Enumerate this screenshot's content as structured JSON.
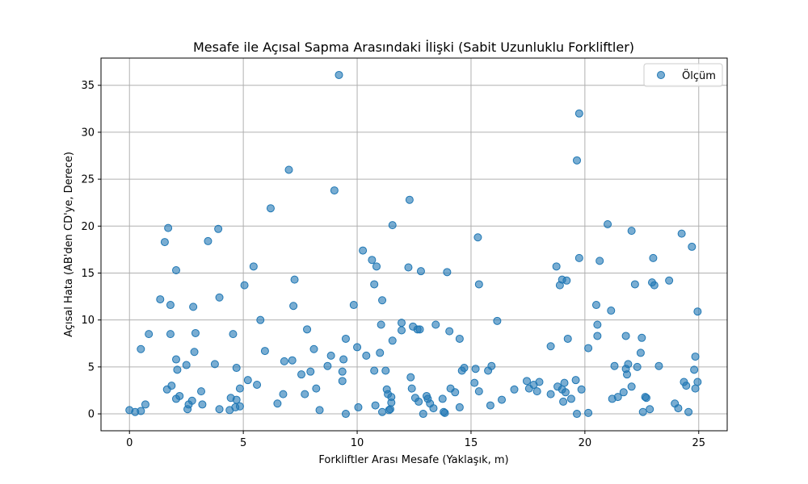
{
  "chart_data": {
    "type": "scatter",
    "title": "Mesafe ile Açısal Sapma Arasındaki İlişki (Sabit Uzunluklu Forkliftler)",
    "xlabel": "Forkliftler Arası Mesafe (Yaklaşık, m)",
    "ylabel": "Açısal Hata (AB'den CD'ye, Derece)",
    "xlim": [
      -1.25,
      26.25
    ],
    "ylim": [
      -1.8,
      37.9
    ],
    "xticks": [
      0,
      5,
      10,
      15,
      20,
      25
    ],
    "yticks": [
      0,
      5,
      10,
      15,
      20,
      25,
      30,
      35
    ],
    "grid": true,
    "legend_position": "top-right",
    "series": [
      {
        "name": "Ölçüm",
        "color": "#1f77b4",
        "points": [
          [
            0.0,
            0.4
          ],
          [
            0.25,
            0.2
          ],
          [
            0.5,
            0.3
          ],
          [
            0.5,
            6.9
          ],
          [
            0.7,
            1.0
          ],
          [
            0.85,
            8.5
          ],
          [
            1.35,
            12.2
          ],
          [
            1.55,
            18.3
          ],
          [
            1.65,
            2.6
          ],
          [
            1.7,
            19.8
          ],
          [
            1.8,
            11.6
          ],
          [
            1.8,
            8.5
          ],
          [
            1.85,
            3.0
          ],
          [
            2.05,
            15.3
          ],
          [
            2.05,
            5.8
          ],
          [
            2.05,
            1.6
          ],
          [
            2.1,
            4.7
          ],
          [
            2.2,
            1.9
          ],
          [
            2.5,
            5.2
          ],
          [
            2.55,
            0.5
          ],
          [
            2.6,
            1.0
          ],
          [
            2.75,
            1.4
          ],
          [
            2.8,
            11.4
          ],
          [
            2.85,
            6.6
          ],
          [
            2.9,
            8.6
          ],
          [
            3.15,
            2.4
          ],
          [
            3.2,
            1.0
          ],
          [
            3.45,
            18.4
          ],
          [
            3.75,
            5.3
          ],
          [
            3.9,
            19.7
          ],
          [
            3.95,
            12.4
          ],
          [
            3.95,
            0.5
          ],
          [
            4.4,
            0.4
          ],
          [
            4.45,
            1.7
          ],
          [
            4.55,
            8.5
          ],
          [
            4.65,
            0.7
          ],
          [
            4.7,
            1.5
          ],
          [
            4.7,
            4.9
          ],
          [
            4.85,
            2.7
          ],
          [
            4.85,
            0.8
          ],
          [
            5.05,
            13.7
          ],
          [
            5.2,
            3.6
          ],
          [
            5.45,
            15.7
          ],
          [
            5.6,
            3.1
          ],
          [
            5.75,
            10.0
          ],
          [
            5.95,
            6.7
          ],
          [
            6.2,
            21.9
          ],
          [
            6.5,
            1.1
          ],
          [
            6.75,
            2.1
          ],
          [
            6.8,
            5.6
          ],
          [
            7.0,
            26.0
          ],
          [
            7.15,
            5.7
          ],
          [
            7.2,
            11.5
          ],
          [
            7.25,
            14.3
          ],
          [
            7.55,
            4.2
          ],
          [
            7.7,
            2.1
          ],
          [
            7.8,
            9.0
          ],
          [
            7.95,
            4.5
          ],
          [
            8.1,
            6.9
          ],
          [
            8.2,
            2.7
          ],
          [
            8.35,
            0.4
          ],
          [
            8.7,
            5.1
          ],
          [
            8.85,
            6.2
          ],
          [
            9.0,
            23.8
          ],
          [
            9.2,
            36.1
          ],
          [
            9.35,
            4.5
          ],
          [
            9.35,
            3.5
          ],
          [
            9.4,
            5.8
          ],
          [
            9.5,
            8.0
          ],
          [
            9.5,
            0.0
          ],
          [
            9.85,
            11.6
          ],
          [
            10.0,
            7.1
          ],
          [
            10.05,
            0.7
          ],
          [
            10.25,
            17.4
          ],
          [
            10.4,
            6.2
          ],
          [
            10.65,
            16.4
          ],
          [
            10.75,
            13.8
          ],
          [
            10.75,
            4.6
          ],
          [
            10.8,
            0.9
          ],
          [
            10.85,
            15.7
          ],
          [
            11.0,
            6.5
          ],
          [
            11.05,
            9.5
          ],
          [
            11.1,
            0.2
          ],
          [
            11.1,
            12.1
          ],
          [
            11.25,
            4.6
          ],
          [
            11.3,
            2.6
          ],
          [
            11.35,
            2.1
          ],
          [
            11.4,
            0.4
          ],
          [
            11.45,
            0.5
          ],
          [
            11.5,
            1.2
          ],
          [
            11.5,
            1.8
          ],
          [
            11.55,
            7.8
          ],
          [
            11.55,
            20.1
          ],
          [
            11.95,
            9.7
          ],
          [
            11.95,
            8.9
          ],
          [
            12.25,
            15.6
          ],
          [
            12.3,
            22.8
          ],
          [
            12.35,
            3.9
          ],
          [
            12.4,
            2.7
          ],
          [
            12.45,
            9.3
          ],
          [
            12.55,
            1.7
          ],
          [
            12.65,
            9.0
          ],
          [
            12.7,
            1.3
          ],
          [
            12.75,
            9.0
          ],
          [
            12.8,
            15.2
          ],
          [
            12.9,
            0.0
          ],
          [
            13.05,
            1.9
          ],
          [
            13.1,
            1.6
          ],
          [
            13.2,
            1.1
          ],
          [
            13.35,
            0.6
          ],
          [
            13.45,
            9.5
          ],
          [
            13.75,
            1.6
          ],
          [
            13.8,
            0.2
          ],
          [
            13.85,
            0.1
          ],
          [
            13.95,
            15.1
          ],
          [
            14.05,
            8.8
          ],
          [
            14.1,
            2.7
          ],
          [
            14.3,
            2.3
          ],
          [
            14.5,
            0.7
          ],
          [
            14.5,
            8.0
          ],
          [
            14.6,
            4.6
          ],
          [
            14.7,
            4.9
          ],
          [
            15.15,
            3.3
          ],
          [
            15.2,
            4.8
          ],
          [
            15.3,
            18.8
          ],
          [
            15.35,
            2.4
          ],
          [
            15.35,
            13.8
          ],
          [
            15.75,
            4.6
          ],
          [
            15.85,
            0.9
          ],
          [
            15.9,
            5.1
          ],
          [
            16.15,
            9.9
          ],
          [
            16.35,
            1.5
          ],
          [
            16.9,
            2.6
          ],
          [
            17.45,
            3.5
          ],
          [
            17.55,
            2.7
          ],
          [
            17.75,
            3.1
          ],
          [
            17.9,
            2.4
          ],
          [
            18.0,
            3.4
          ],
          [
            18.5,
            7.2
          ],
          [
            18.5,
            2.1
          ],
          [
            18.75,
            15.7
          ],
          [
            18.8,
            2.9
          ],
          [
            18.9,
            13.7
          ],
          [
            19.0,
            14.3
          ],
          [
            19.0,
            2.6
          ],
          [
            19.05,
            1.3
          ],
          [
            19.1,
            3.3
          ],
          [
            19.15,
            2.3
          ],
          [
            19.2,
            14.2
          ],
          [
            19.25,
            8.0
          ],
          [
            19.4,
            1.6
          ],
          [
            19.6,
            3.6
          ],
          [
            19.65,
            0.0
          ],
          [
            19.65,
            27.0
          ],
          [
            19.75,
            32.0
          ],
          [
            19.75,
            16.6
          ],
          [
            19.85,
            2.6
          ],
          [
            20.15,
            0.1
          ],
          [
            20.15,
            7.0
          ],
          [
            20.5,
            11.6
          ],
          [
            20.55,
            9.5
          ],
          [
            20.55,
            8.3
          ],
          [
            20.65,
            16.3
          ],
          [
            21.0,
            20.2
          ],
          [
            21.15,
            11.0
          ],
          [
            21.2,
            1.6
          ],
          [
            21.3,
            5.1
          ],
          [
            21.45,
            1.8
          ],
          [
            21.7,
            2.3
          ],
          [
            21.8,
            8.3
          ],
          [
            21.8,
            4.8
          ],
          [
            21.85,
            4.2
          ],
          [
            21.9,
            5.3
          ],
          [
            22.05,
            19.5
          ],
          [
            22.05,
            2.9
          ],
          [
            22.2,
            13.8
          ],
          [
            22.3,
            5.0
          ],
          [
            22.45,
            6.5
          ],
          [
            22.5,
            8.1
          ],
          [
            22.55,
            0.2
          ],
          [
            22.65,
            1.8
          ],
          [
            22.7,
            1.7
          ],
          [
            22.85,
            0.5
          ],
          [
            22.95,
            14.0
          ],
          [
            23.0,
            16.6
          ],
          [
            23.05,
            13.7
          ],
          [
            23.25,
            5.1
          ],
          [
            23.7,
            14.2
          ],
          [
            23.95,
            1.1
          ],
          [
            24.1,
            0.6
          ],
          [
            24.25,
            19.2
          ],
          [
            24.35,
            3.4
          ],
          [
            24.45,
            3.0
          ],
          [
            24.55,
            0.2
          ],
          [
            24.7,
            17.8
          ],
          [
            24.8,
            4.7
          ],
          [
            24.85,
            6.1
          ],
          [
            24.85,
            2.7
          ],
          [
            24.95,
            10.9
          ],
          [
            24.95,
            3.4
          ]
        ]
      }
    ]
  }
}
